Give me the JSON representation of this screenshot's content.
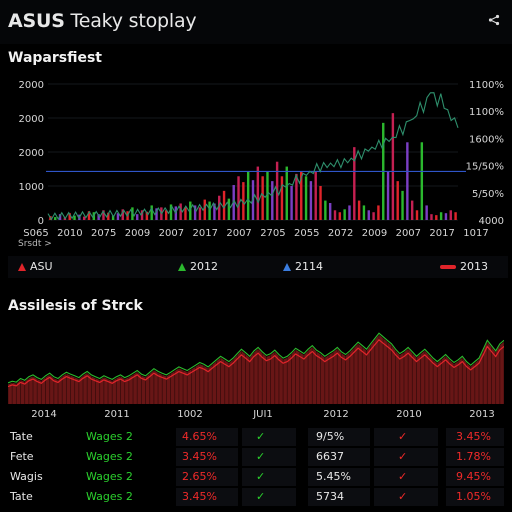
{
  "header": {
    "brand": "ASUS",
    "title_rest": " Teaky stoplay",
    "share_icon": "share-icon"
  },
  "overview": {
    "title": "Waparsfiest",
    "sort_label": "Srsdt >"
  },
  "chart_data": [
    {
      "type": "bar",
      "title": "Waparsfiest",
      "left_ticks": [
        "0",
        "1000",
        "2000",
        "2000",
        "2000"
      ],
      "right_ticks": [
        "4000",
        "5/50%",
        "15/50%",
        "1600%",
        "1100%",
        "1100%"
      ],
      "x_ticks": [
        "S065",
        "2010",
        "2075",
        "2009",
        "2007",
        "2017",
        "2007",
        "2705",
        "2055",
        "2072",
        "2009",
        "2007",
        "2017",
        "1017"
      ],
      "reference_line": 1000,
      "ylim": [
        0,
        2800
      ],
      "bar_colors": [
        "#e0242a",
        "#2bb82e",
        "#7b3fc4",
        "#c42052"
      ],
      "line_color": "#2e8f6c",
      "reference_color": "#2f55c8",
      "line_series": [
        10,
        14,
        18,
        22,
        28,
        33,
        31,
        36,
        40,
        37,
        44,
        50,
        47,
        55,
        52,
        60,
        58,
        66,
        71,
        68,
        74,
        80,
        77,
        84,
        90,
        88,
        96,
        104,
        100,
        110,
        118,
        115,
        124,
        133,
        128,
        140,
        152,
        146,
        158,
        170,
        164,
        178,
        190,
        184,
        196,
        205,
        199,
        212,
        225,
        215,
        232,
        250,
        240,
        262,
        280,
        268,
        300,
        330,
        310,
        350,
        395,
        365,
        420,
        470,
        440,
        500,
        560,
        520,
        600,
        680,
        630,
        720,
        800,
        760,
        840,
        920,
        880,
        960,
        1040,
        1000,
        1060,
        1080,
        1050,
        1100,
        1120,
        1080,
        1140,
        1180,
        1150,
        1220,
        1300,
        1260,
        1340,
        1420,
        1380,
        1460,
        1520,
        1480,
        1560,
        1620,
        1580,
        1700,
        1820,
        1760,
        1900,
        2050,
        1960,
        2150,
        2300,
        2220,
        2400,
        2620,
        2500,
        2350,
        2480,
        2300,
        2150,
        2050,
        1980,
        1900
      ],
      "bars": [
        80,
        60,
        120,
        50,
        140,
        90,
        110,
        70,
        180,
        160,
        120,
        200,
        150,
        90,
        140,
        220,
        180,
        260,
        120,
        200,
        170,
        300,
        240,
        260,
        200,
        320,
        280,
        340,
        260,
        380,
        300,
        260,
        420,
        380,
        340,
        500,
        600,
        440,
        720,
        900,
        780,
        1000,
        820,
        1100,
        900,
        1000,
        800,
        1200,
        900,
        1100,
        700,
        950,
        1000,
        900,
        800,
        1000,
        700,
        400,
        350,
        200,
        160,
        220,
        300,
        1500,
        400,
        300,
        200,
        160,
        300,
        2000,
        1000,
        2200,
        800,
        600,
        1600,
        400,
        200,
        1600,
        300,
        120,
        100,
        160,
        140,
        200,
        160
      ]
    },
    {
      "type": "area",
      "title": "Assilesis of Strck",
      "x_ticks": [
        "2014",
        "2011",
        "1002",
        "JUI1",
        "2012",
        "2010",
        "2013"
      ],
      "fill_color": "#7a1a1a",
      "line_colors": [
        "#2bb82e",
        "#e0242a"
      ],
      "values": [
        22,
        24,
        23,
        27,
        25,
        29,
        31,
        28,
        26,
        30,
        33,
        29,
        27,
        31,
        34,
        32,
        30,
        28,
        32,
        35,
        31,
        29,
        27,
        30,
        28,
        26,
        29,
        31,
        28,
        30,
        33,
        36,
        32,
        30,
        34,
        38,
        35,
        33,
        31,
        34,
        37,
        40,
        38,
        36,
        39,
        42,
        45,
        43,
        40,
        44,
        48,
        52,
        49,
        46,
        50,
        55,
        60,
        56,
        52,
        58,
        62,
        57,
        53,
        55,
        59,
        54,
        50,
        52,
        56,
        61,
        58,
        55,
        60,
        64,
        59,
        56,
        52,
        55,
        58,
        62,
        57,
        54,
        58,
        63,
        68,
        64,
        60,
        66,
        72,
        78,
        74,
        70,
        66,
        60,
        55,
        58,
        62,
        57,
        52,
        56,
        60,
        55,
        50,
        46,
        50,
        54,
        49,
        45,
        48,
        52,
        46,
        42,
        46,
        50,
        60,
        70,
        64,
        58,
        66,
        70
      ]
    }
  ],
  "legend": [
    {
      "label": "ASU",
      "color": "#e0242a",
      "shape": "triangle"
    },
    {
      "label": "2012",
      "color": "#2bb82e",
      "shape": "triangle"
    },
    {
      "label": "2114",
      "color": "#3b7de0",
      "shape": "triangle"
    },
    {
      "label": "2013",
      "color": "#e0242a",
      "shape": "dash"
    }
  ],
  "analysis": {
    "title": "Assilesis of Strck"
  },
  "table": {
    "rows": [
      {
        "name": "Tate",
        "group": "Wages 2",
        "pct": "4.65%",
        "check1": "✓",
        "value": "9/5%",
        "check2": "✓",
        "change": "3.45%"
      },
      {
        "name": "Fete",
        "group": "Wages 2",
        "pct": "3.45%",
        "check1": "✓",
        "value": "6637",
        "check2": "✓",
        "change": "1.78%"
      },
      {
        "name": "Wagis",
        "group": "Wages 2",
        "pct": "2.65%",
        "check1": "✓",
        "value": "5.45%",
        "check2": "✓",
        "change": "9.45%"
      },
      {
        "name": "Tate",
        "group": "Wages 2",
        "pct": "3.45%",
        "check1": "✓",
        "value": "5734",
        "check2": "✓",
        "change": "1.05%"
      }
    ]
  },
  "colors": {
    "red": "#e0242a",
    "green": "#2bb82e",
    "text": "#e8e8e8"
  }
}
